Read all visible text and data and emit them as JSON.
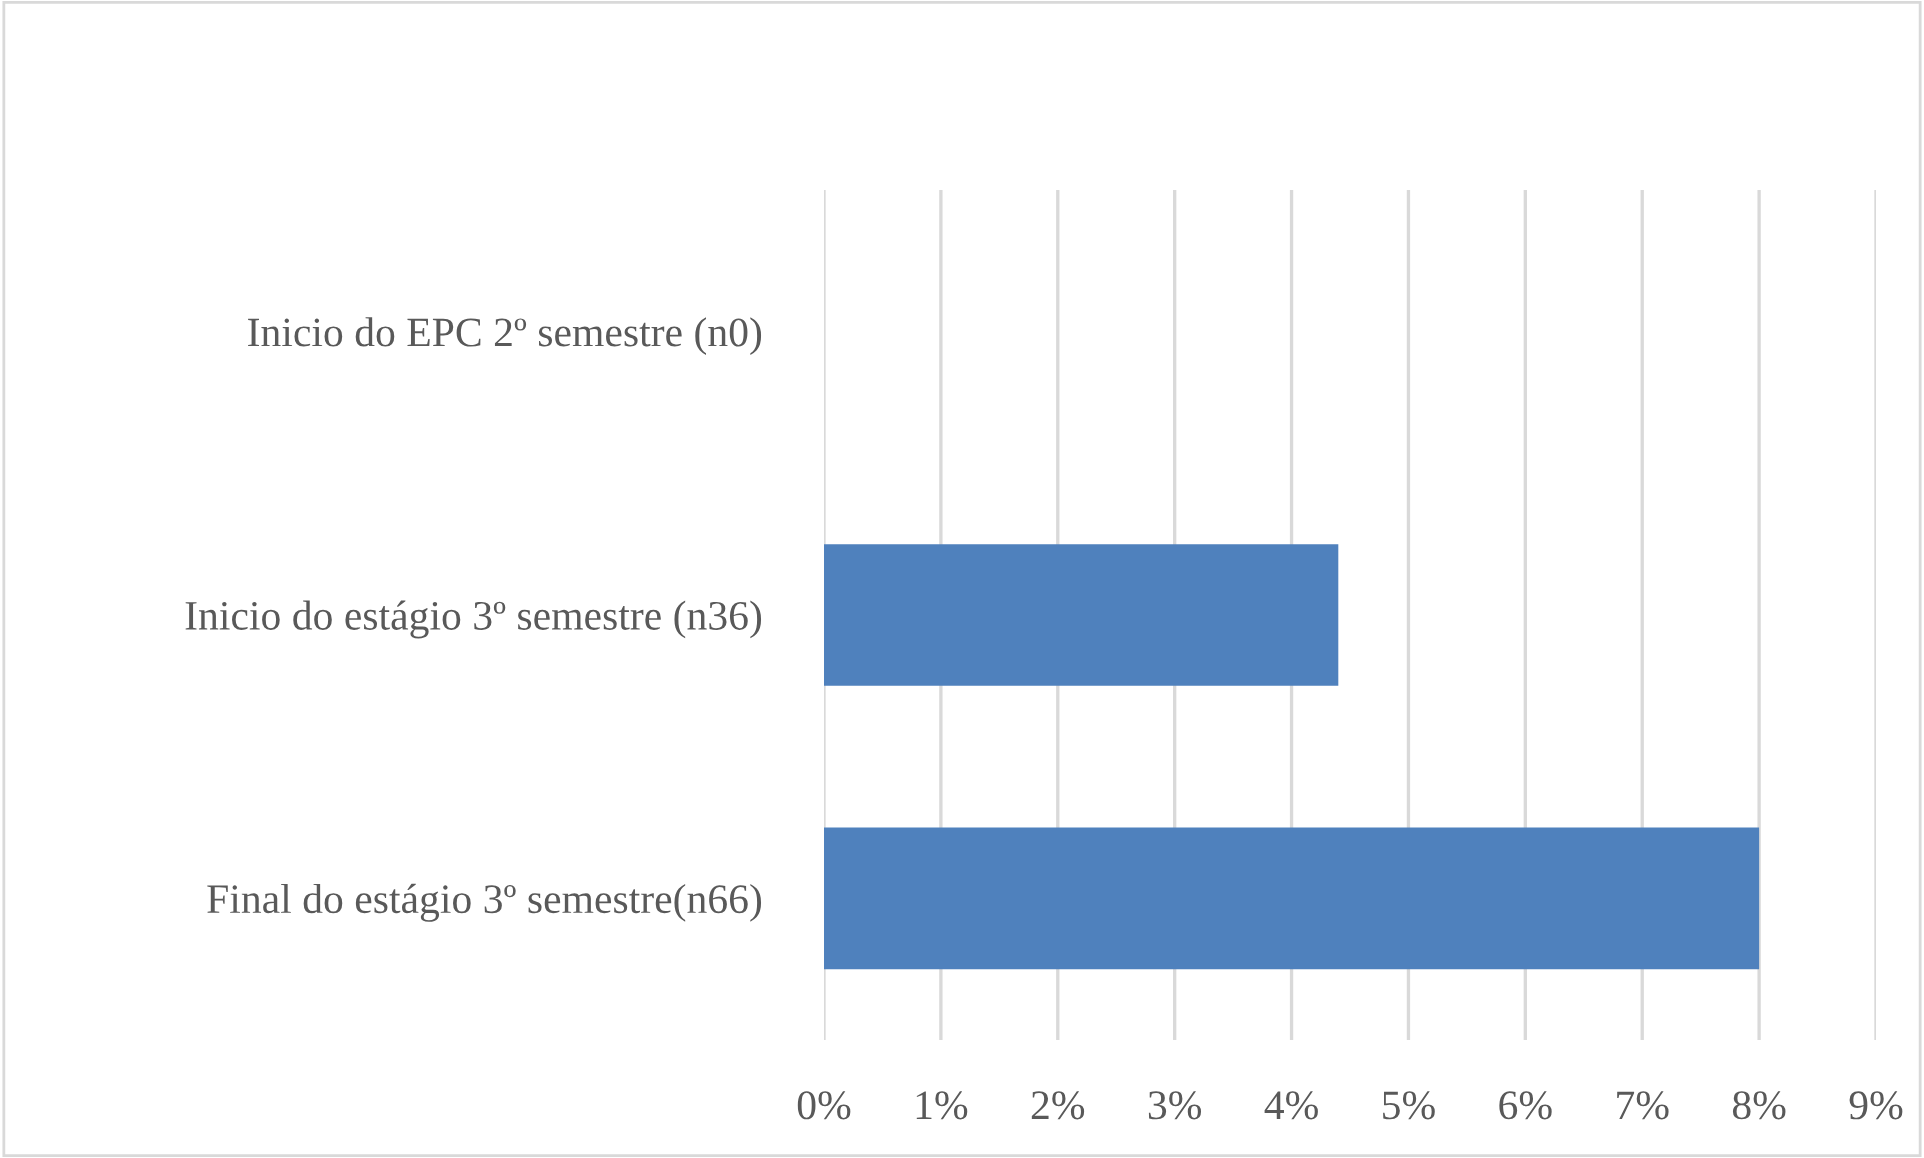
{
  "chart_data": {
    "type": "bar",
    "orientation": "horizontal",
    "categories": [
      "Inicio do EPC 2º semestre (n0)",
      "Inicio do estágio 3º semestre (n36)",
      "Final do estágio 3º semestre(n66)"
    ],
    "values": [
      0,
      4.4,
      8
    ],
    "color": "#4f81bd",
    "xlim": [
      0,
      9
    ],
    "xticks": [
      {
        "value": 0,
        "label": "0%"
      },
      {
        "value": 1,
        "label": "1%"
      },
      {
        "value": 2,
        "label": "2%"
      },
      {
        "value": 3,
        "label": "3%"
      },
      {
        "value": 4,
        "label": "4%"
      },
      {
        "value": 5,
        "label": "5%"
      },
      {
        "value": 6,
        "label": "6%"
      },
      {
        "value": 7,
        "label": "7%"
      },
      {
        "value": 8,
        "label": "8%"
      },
      {
        "value": 9,
        "label": "9%"
      }
    ],
    "grid": "x",
    "legend": false
  }
}
